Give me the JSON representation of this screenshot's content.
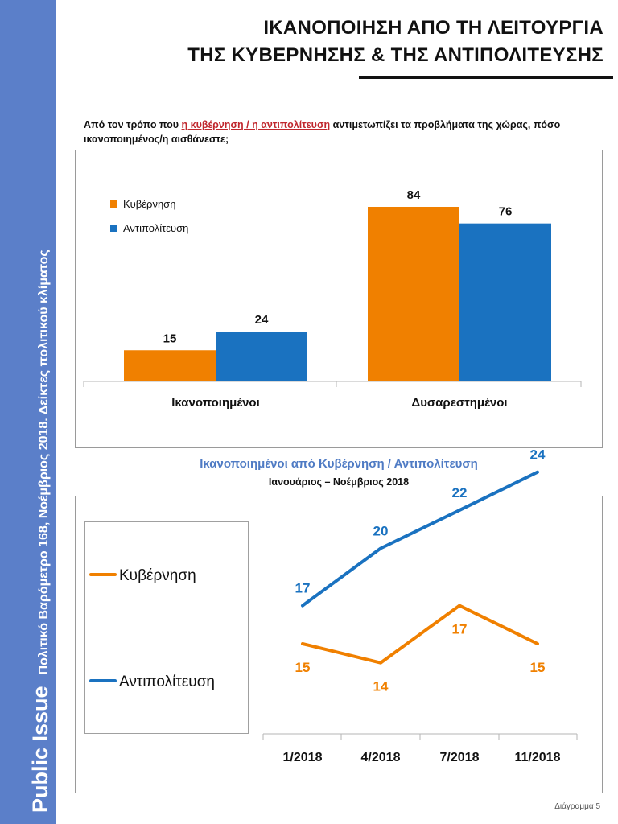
{
  "sidebar": {
    "brand": "Public Issue",
    "caption": "Πολιτικό Βαρόμετρο 168, Νοέμβριος 2018. Δείκτες πολιτικού κλίματος"
  },
  "header": {
    "title_line1": "ΙΚΑΝΟΠΟΙΗΣΗ ΑΠΟ ΤΗ ΛΕΙΤΟΥΡΓΙΑ",
    "title_line2": "ΤΗΣ ΚΥΒΕΡΝΗΣΗΣ & ΤΗΣ ΑΝΤΙΠΟΛΙΤΕΥΣΗΣ"
  },
  "question": {
    "before": "Από τον τρόπο που ",
    "highlight": "η κυβέρνηση / η αντιπολίτευση",
    "after": " αντιμετωπίζει τα προβλήματα της χώρας, πόσο ικανοποιημένος/η αισθάνεστε;"
  },
  "colors": {
    "government": "#f08000",
    "opposition": "#1a72c0",
    "sidebar": "#5b7fc9",
    "subtitle_blue": "#4f7bc4",
    "highlight": "#c0272d"
  },
  "chart_data": [
    {
      "type": "bar",
      "title": "",
      "categories": [
        "Ικανοποιημένοι",
        "Δυσαρεστημένοι"
      ],
      "series": [
        {
          "name": "Κυβέρνηση",
          "values": [
            15,
            84
          ],
          "color": "#f08000"
        },
        {
          "name": "Αντιπολίτευση",
          "values": [
            24,
            76
          ],
          "color": "#1a72c0"
        }
      ],
      "legend": "top-left",
      "grid": false
    },
    {
      "type": "line",
      "title": "Ικανοποιημένοι από Κυβέρνηση / Αντιπολίτευση",
      "subtitle": "Ιανουάριος – Νοέμβριος 2018",
      "x": [
        "1/2018",
        "4/2018",
        "7/2018",
        "11/2018"
      ],
      "series": [
        {
          "name": "Κυβέρνηση",
          "values": [
            15,
            14,
            17,
            15
          ],
          "color": "#f08000"
        },
        {
          "name": "Αντιπολίτευση",
          "values": [
            17,
            20,
            22,
            24
          ],
          "color": "#1a72c0"
        }
      ],
      "legend": "left",
      "grid": false
    }
  ],
  "footer": {
    "label": "Διάγραμμα 5"
  }
}
